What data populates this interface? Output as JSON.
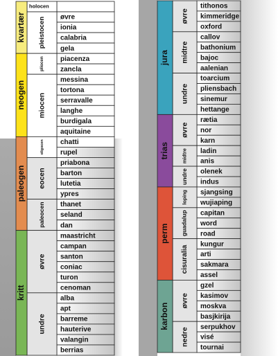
{
  "columns": [
    {
      "periods": [
        {
          "name": "kvartær",
          "color": "#f7ec7e",
          "epochs": [
            {
              "name": "holocen",
              "stages": []
            },
            {
              "name": "pleistocen",
              "stages": [
                "øvre",
                "ionia",
                "calabria",
                "gela"
              ]
            }
          ]
        },
        {
          "name": "neogen",
          "color": "#fde21a",
          "epochs": [
            {
              "name": "pliocen",
              "stages": [
                "piacenza",
                "zancla"
              ]
            },
            {
              "name": "miocen",
              "stages": [
                "messina",
                "tortona",
                "serravalle",
                "langhe",
                "burdigala",
                "aquitaine"
              ]
            }
          ]
        },
        {
          "name": "paleogen",
          "color": "#e38c4f",
          "epochs": [
            {
              "name": "oligocen",
              "stages": [
                "chatti",
                "rupel"
              ]
            },
            {
              "name": "eocen",
              "stages": [
                "priabona",
                "barton",
                "lutetia",
                "ypres"
              ]
            },
            {
              "name": "paleocen",
              "stages": [
                "thanet",
                "seland",
                "dan"
              ]
            }
          ]
        },
        {
          "name": "kritt",
          "color": "#79b655",
          "epochs": [
            {
              "name": "øvre",
              "stages": [
                "maastricht",
                "campan",
                "santon",
                "coniac",
                "turon",
                "cenoman"
              ]
            },
            {
              "name": "undre",
              "stages": [
                "alba",
                "apt",
                "barreme",
                "hauterive",
                "valangin",
                "berrias"
              ]
            }
          ]
        }
      ]
    },
    {
      "periods": [
        {
          "name": "jura",
          "color": "#3aa3bd",
          "epochs": [
            {
              "name": "øvre",
              "stages": [
                "tithonos",
                "kimmeridge",
                "oxford"
              ]
            },
            {
              "name": "midtre",
              "stages": [
                "callov",
                "bathonium",
                "bajoc",
                "aalenian"
              ]
            },
            {
              "name": "undre",
              "stages": [
                "toarcium",
                "pliensbach",
                "sinemur",
                "hettange"
              ]
            }
          ]
        },
        {
          "name": "trias",
          "color": "#8a4b9c",
          "epochs": [
            {
              "name": "øvre",
              "stages": [
                "rætia",
                "nor",
                "karn"
              ]
            },
            {
              "name": "midtre",
              "stages": [
                "ladin",
                "anis"
              ]
            },
            {
              "name": "undre",
              "stages": [
                "olenek",
                "indus"
              ]
            }
          ]
        },
        {
          "name": "perm",
          "color": "#de5439",
          "epochs": [
            {
              "name": "loping",
              "stages": [
                "sjangsing",
                "wujiaping"
              ]
            },
            {
              "name": "guadalup",
              "stages": [
                "capitan",
                "word",
                "road"
              ]
            },
            {
              "name": "cisuralia",
              "stages": [
                "kungur",
                "arti",
                "sakmara",
                "assel"
              ]
            }
          ]
        },
        {
          "name": "karbon",
          "color": "#6ea493",
          "epochs": [
            {
              "name": "øvre",
              "stages": [
                "gzel",
                "kasimov",
                "moskva",
                "basjkirija"
              ]
            },
            {
              "name": "nedre",
              "stages": [
                "serpukhov",
                "visé",
                "tournai"
              ]
            }
          ]
        }
      ]
    }
  ]
}
